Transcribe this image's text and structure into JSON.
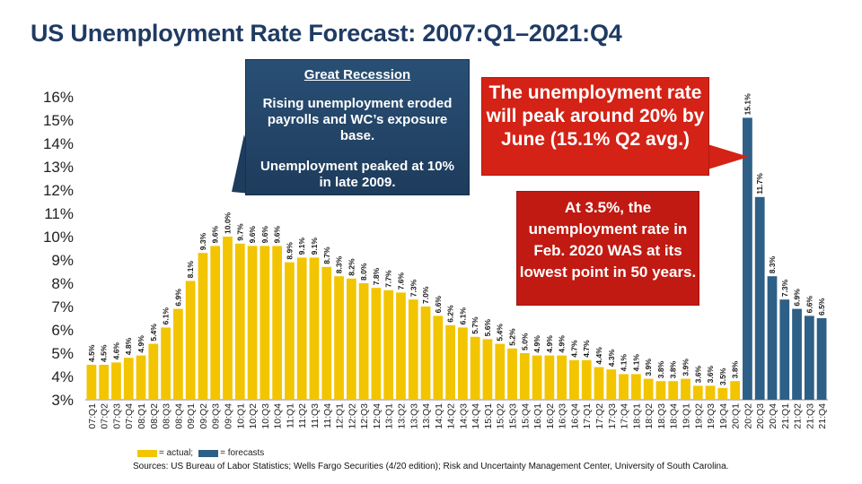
{
  "title": "US Unemployment Rate Forecast: 2007:Q1–2021:Q4",
  "callouts": {
    "recession_heading": "Great Recession",
    "recession_line1": "Rising unemployment eroded payrolls and WC’s exposure base.",
    "recession_line2": "Unemployment peaked at 10% in late 2009.",
    "peak": "The unemployment rate will peak around 20% by June (15.1% Q2 avg.)",
    "lowest": "At 3.5%, the unemployment rate in Feb. 2020 WAS at its lowest point in 50 years."
  },
  "legend": {
    "actual_label": "= actual;",
    "forecast_label": "= forecasts",
    "actual_color": "#f2c500",
    "forecast_color": "#2e5f86"
  },
  "source": "Sources: US Bureau of Labor Statistics; Wells Fargo Securities (4/20 edition); Risk and Uncertainty Management Center, University of South Carolina.",
  "chart_data": {
    "type": "bar",
    "ylim": [
      3,
      16
    ],
    "yticks": [
      "3%",
      "4%",
      "5%",
      "6%",
      "7%",
      "8%",
      "9%",
      "10%",
      "11%",
      "12%",
      "13%",
      "14%",
      "15%",
      "16%"
    ],
    "categories": [
      "07:Q1",
      "07:Q2",
      "07:Q3",
      "07:Q4",
      "08:Q1",
      "08:Q2",
      "08:Q3",
      "08:Q4",
      "09:Q1",
      "09:Q2",
      "09:Q3",
      "09:Q4",
      "10:Q1",
      "10:Q2",
      "10:Q3",
      "10:Q4",
      "11:Q1",
      "11:Q2",
      "11:Q3",
      "11:Q4",
      "12:Q1",
      "12:Q2",
      "12:Q3",
      "12:Q4",
      "13:Q1",
      "13:Q2",
      "13:Q3",
      "13:Q4",
      "14:Q1",
      "14:Q2",
      "14:Q3",
      "14:Q4",
      "15:Q1",
      "15:Q2",
      "15:Q3",
      "15:Q4",
      "16:Q1",
      "16:Q2",
      "16:Q3",
      "16:Q4",
      "17:Q1",
      "17:Q2",
      "17:Q3",
      "17:Q4",
      "18:Q1",
      "18:Q2",
      "18:Q3",
      "18:Q4",
      "19:Q1",
      "19:Q2",
      "19:Q3",
      "19:Q4",
      "20:Q1",
      "20:Q2",
      "20:Q3",
      "20:Q4",
      "21:Q1",
      "21:Q2",
      "21:Q3",
      "21:Q4"
    ],
    "values": [
      4.5,
      4.5,
      4.6,
      4.8,
      4.9,
      5.4,
      6.1,
      6.9,
      8.1,
      9.3,
      9.6,
      10.0,
      9.7,
      9.6,
      9.6,
      9.6,
      8.9,
      9.1,
      9.1,
      8.7,
      8.3,
      8.2,
      8.0,
      7.8,
      7.7,
      7.6,
      7.3,
      7.0,
      6.6,
      6.2,
      6.1,
      5.7,
      5.6,
      5.4,
      5.2,
      5.0,
      4.9,
      4.9,
      4.9,
      4.7,
      4.7,
      4.4,
      4.3,
      4.1,
      4.1,
      3.9,
      3.8,
      3.8,
      3.9,
      3.6,
      3.6,
      3.5,
      3.8,
      15.1,
      11.7,
      8.3,
      7.3,
      6.9,
      6.6,
      6.5
    ],
    "value_labels": [
      "4.5%",
      "4.5%",
      "4.6%",
      "4.8%",
      "4.9%",
      "5.4%",
      "6.1%",
      "6.9%",
      "8.1%",
      "9.3%",
      "9.6%",
      "10.0%",
      "9.7%",
      "9.6%",
      "9.6%",
      "9.6%",
      "8.9%",
      "9.1%",
      "9.1%",
      "8.7%",
      "8.3%",
      "8.2%",
      "8.0%",
      "7.8%",
      "7.7%",
      "7.6%",
      "7.3%",
      "7.0%",
      "6.6%",
      "6.2%",
      "6.1%",
      "5.7%",
      "5.6%",
      "5.4%",
      "5.2%",
      "5.0%",
      "4.9%",
      "4.9%",
      "4.9%",
      "4.7%",
      "4.7%",
      "4.4%",
      "4.3%",
      "4.1%",
      "4.1%",
      "3.9%",
      "3.8%",
      "3.8%",
      "3.9%",
      "3.6%",
      "3.6%",
      "3.5%",
      "3.8%",
      "15.1%",
      "11.7%",
      "8.3%",
      "7.3%",
      "6.9%",
      "6.6%",
      "6.5%"
    ],
    "status": [
      "actual",
      "actual",
      "actual",
      "actual",
      "actual",
      "actual",
      "actual",
      "actual",
      "actual",
      "actual",
      "actual",
      "actual",
      "actual",
      "actual",
      "actual",
      "actual",
      "actual",
      "actual",
      "actual",
      "actual",
      "actual",
      "actual",
      "actual",
      "actual",
      "actual",
      "actual",
      "actual",
      "actual",
      "actual",
      "actual",
      "actual",
      "actual",
      "actual",
      "actual",
      "actual",
      "actual",
      "actual",
      "actual",
      "actual",
      "actual",
      "actual",
      "actual",
      "actual",
      "actual",
      "actual",
      "actual",
      "actual",
      "actual",
      "actual",
      "actual",
      "actual",
      "actual",
      "actual",
      "forecast",
      "forecast",
      "forecast",
      "forecast",
      "forecast",
      "forecast",
      "forecast"
    ],
    "grid": false,
    "legend_position": "bottom-left"
  }
}
